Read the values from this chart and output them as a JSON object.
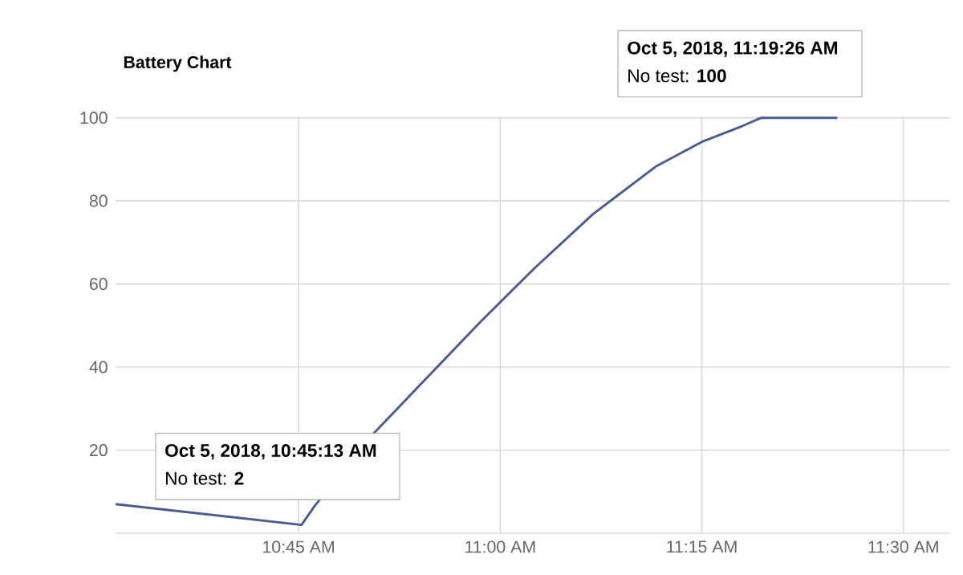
{
  "chart_data": {
    "type": "line",
    "title": "Battery Chart",
    "x": [
      10.523,
      10.7536,
      10.77,
      10.843,
      10.976,
      11.042,
      11.115,
      11.194,
      11.25,
      11.3,
      11.3239,
      11.418
    ],
    "series": [
      {
        "color": "#4a5c8c",
        "values": [
          7,
          2,
          6.6,
          24,
          51,
          63.7,
          76.8,
          88.4,
          94.2,
          98,
          100,
          100
        ]
      }
    ],
    "xlim": [
      10.523,
      11.558
    ],
    "xticks": [
      {
        "value": 10.75,
        "label": "10:45 AM"
      },
      {
        "value": 11,
        "label": "11:00 AM"
      },
      {
        "value": 11.25,
        "label": "11:15 AM"
      },
      {
        "value": 11.5,
        "label": "11:30 AM"
      }
    ],
    "ylim": [
      0,
      100
    ],
    "yticks": [
      {
        "value": 0,
        "label": null
      },
      20,
      40,
      60,
      80,
      100
    ],
    "grid": true,
    "marker": "none",
    "line_style": "solid",
    "annotations": [
      "Oct 5, 2018, 10:45:13 AM",
      "No test: **2**",
      "Oct 5, 2018, 11:19:26 AM",
      "No test: **100**"
    ]
  }
}
